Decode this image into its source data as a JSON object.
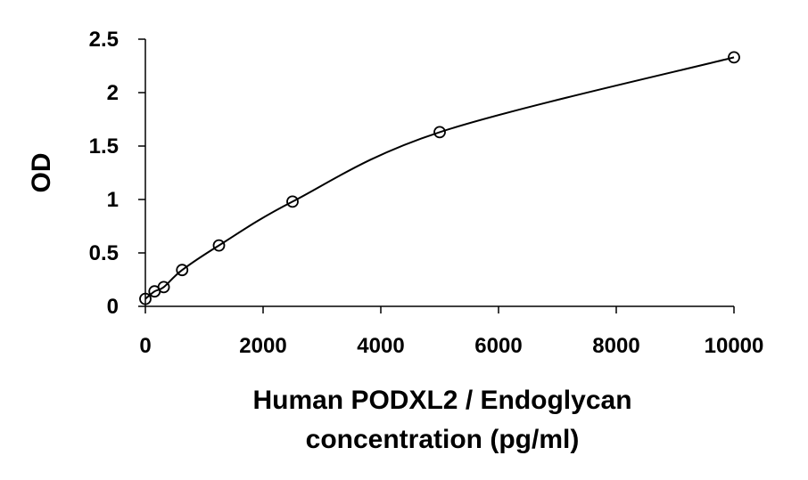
{
  "chart_data": {
    "type": "scatter",
    "title": "",
    "xlabel_lines": [
      "Human PODXL2 / Endoglycan",
      "concentration (pg/ml)"
    ],
    "ylabel": "OD",
    "xlim": [
      0,
      10000
    ],
    "ylim": [
      0,
      2.5
    ],
    "x_ticks": [
      "0",
      "2000",
      "4000",
      "6000",
      "8000",
      "10000"
    ],
    "y_ticks": [
      "0",
      "0.5",
      "1",
      "1.5",
      "2",
      "2.5"
    ],
    "grid": false,
    "legend": "none",
    "fit_curve": true,
    "series": [
      {
        "points": [
          {
            "x": 0,
            "y": 0.07
          },
          {
            "x": 156,
            "y": 0.14
          },
          {
            "x": 312,
            "y": 0.18
          },
          {
            "x": 625,
            "y": 0.34
          },
          {
            "x": 1250,
            "y": 0.57
          },
          {
            "x": 2500,
            "y": 0.98
          },
          {
            "x": 5000,
            "y": 1.63
          },
          {
            "x": 10000,
            "y": 2.33
          }
        ]
      }
    ],
    "colors": {
      "marker_stroke": "#000000",
      "curve": "#000000",
      "axis": "#000000"
    }
  }
}
